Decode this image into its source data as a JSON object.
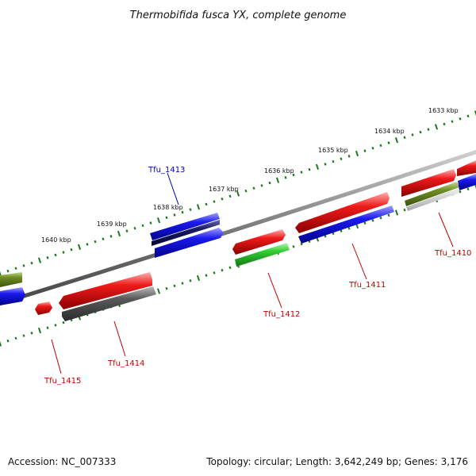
{
  "title": "Thermobifida fusca YX, complete genome",
  "accession": "Accession: NC_007333",
  "genome_info": "Topology: circular; Length: 3,642,249 bp; Genes: 3,176",
  "kbp_ticks": [
    "1633 kbp",
    "1634 kbp",
    "1635 kbp",
    "1636 kbp",
    "1637 kbp",
    "1638 kbp",
    "1639 kbp",
    "1640 kbp"
  ],
  "gene_labels": [
    "Tfu_1410",
    "Tfu_1411",
    "Tfu_1412",
    "Tfu_1413",
    "Tfu_1414",
    "Tfu_1415"
  ],
  "colors": {
    "red": "#e01010",
    "blue": "#1010e0",
    "green": "#30c030",
    "olive": "#6b8a1e",
    "gray": "#555555",
    "navy": "#151560",
    "tick_green": "#1a7a1a",
    "label_red": "#c00000",
    "label_blue": "#0000c0"
  }
}
